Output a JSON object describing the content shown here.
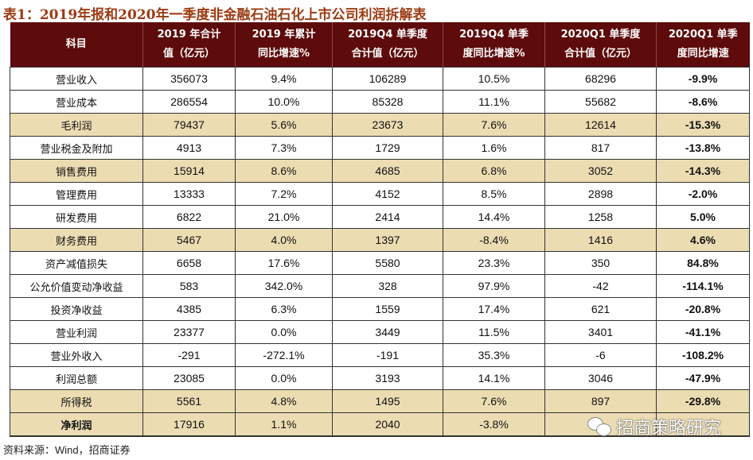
{
  "title": "表1：2019年报和2020年一季度非金融石油石化上市公司利润拆解表",
  "headers": [
    [
      "科目",
      ""
    ],
    [
      "2019 年合计",
      "值（亿元）"
    ],
    [
      "2019 年累计",
      "同比增速%"
    ],
    [
      "2019Q4 单季度",
      "合计值（亿元）"
    ],
    [
      "2019Q4 单季",
      "度同比增速%"
    ],
    [
      "2020Q1 单季度",
      "合计值（亿元）"
    ],
    [
      "2020Q1 单季",
      "度同比增速"
    ]
  ],
  "rows": [
    {
      "cells": [
        "营业收入",
        "356073",
        "9.4%",
        "106289",
        "10.5%",
        "68296",
        "-9.9%"
      ],
      "highlight": false
    },
    {
      "cells": [
        "营业成本",
        "286554",
        "10.0%",
        "85328",
        "11.1%",
        "55682",
        "-8.6%"
      ],
      "highlight": false
    },
    {
      "cells": [
        "毛利润",
        "79437",
        "5.6%",
        "23673",
        "7.6%",
        "12614",
        "-15.3%"
      ],
      "highlight": true
    },
    {
      "cells": [
        "营业税金及附加",
        "4913",
        "7.3%",
        "1729",
        "1.6%",
        "817",
        "-13.8%"
      ],
      "highlight": false
    },
    {
      "cells": [
        "销售费用",
        "15914",
        "8.6%",
        "4685",
        "6.8%",
        "3052",
        "-14.3%"
      ],
      "highlight": true
    },
    {
      "cells": [
        "管理费用",
        "13333",
        "7.2%",
        "4152",
        "8.5%",
        "2898",
        "-2.0%"
      ],
      "highlight": false
    },
    {
      "cells": [
        "研发费用",
        "6822",
        "21.0%",
        "2414",
        "14.4%",
        "1258",
        "5.0%"
      ],
      "highlight": false
    },
    {
      "cells": [
        "财务费用",
        "5467",
        "4.0%",
        "1397",
        "-8.4%",
        "1416",
        "4.6%"
      ],
      "highlight": true
    },
    {
      "cells": [
        "资产减值损失",
        "6658",
        "17.6%",
        "5580",
        "23.3%",
        "350",
        "84.8%"
      ],
      "highlight": false
    },
    {
      "cells": [
        "公允价值变动净收益",
        "583",
        "342.0%",
        "328",
        "97.9%",
        "-42",
        "-114.1%"
      ],
      "highlight": false
    },
    {
      "cells": [
        "投资净收益",
        "4385",
        "6.3%",
        "1559",
        "17.4%",
        "621",
        "-20.8%"
      ],
      "highlight": false
    },
    {
      "cells": [
        "营业利润",
        "23377",
        "0.0%",
        "3449",
        "11.5%",
        "3401",
        "-41.1%"
      ],
      "highlight": false
    },
    {
      "cells": [
        "营业外收入",
        "-291",
        "-272.1%",
        "-191",
        "35.3%",
        "-6",
        "-108.2%"
      ],
      "highlight": false
    },
    {
      "cells": [
        "利润总额",
        "23085",
        "0.0%",
        "3193",
        "14.1%",
        "3046",
        "-47.9%"
      ],
      "highlight": false
    },
    {
      "cells": [
        "所得税",
        "5561",
        "4.8%",
        "1495",
        "7.6%",
        "897",
        "-29.8%"
      ],
      "highlight": true
    },
    {
      "cells": [
        "净利润",
        "17916",
        "1.1%",
        "2040",
        "-3.8%",
        "",
        ""
      ],
      "highlight": true,
      "bold": true
    }
  ],
  "source": "资料来源：Wind，招商证券",
  "watermark": "招商策略研究",
  "colors": {
    "header_bg": "#5e0b0b",
    "highlight_bg": "#ecdcb2",
    "title": "#9c3b12"
  }
}
